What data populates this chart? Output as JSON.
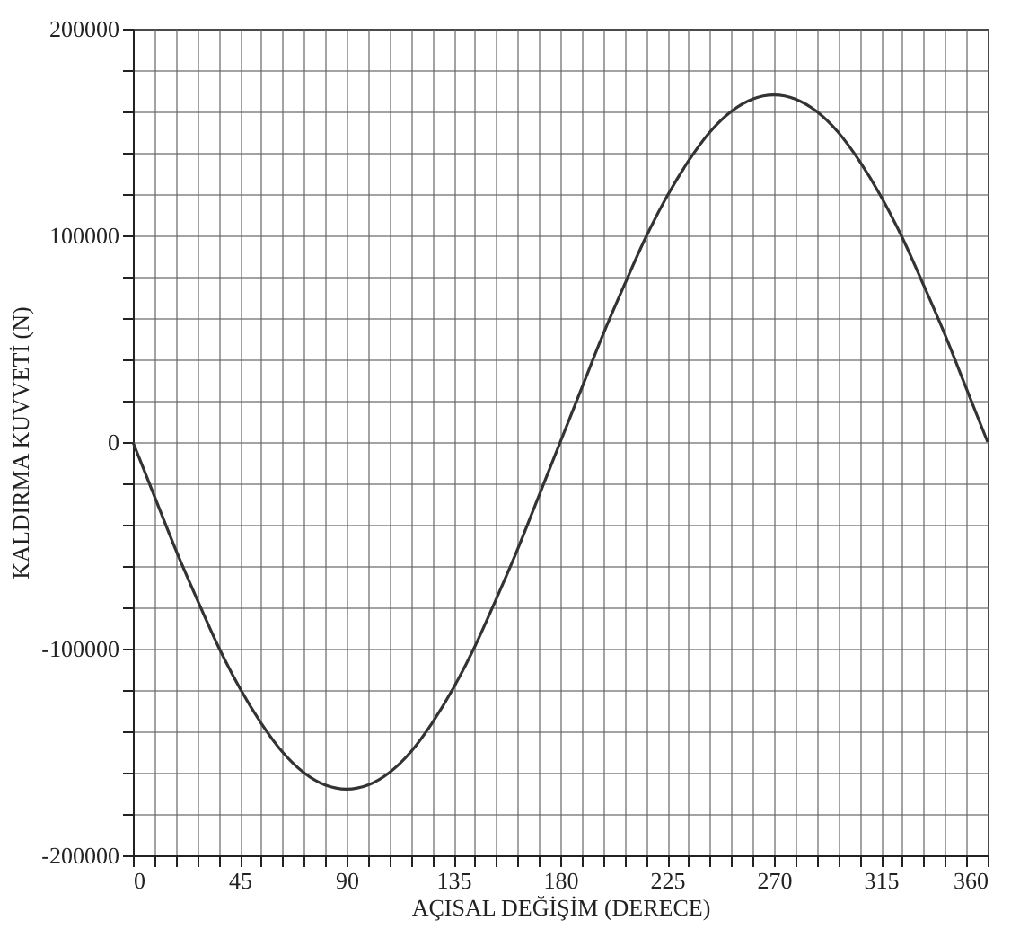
{
  "chart_data": {
    "type": "line",
    "xlabel": "AÇISAL DEĞİŞİM (DERECE)",
    "ylabel": "KALDIRMA KUVVETİ (N)",
    "x": [
      0,
      9,
      18,
      27,
      36,
      45,
      54,
      63,
      72,
      81,
      90,
      99,
      108,
      117,
      126,
      135,
      144,
      153,
      162,
      171,
      180,
      189,
      198,
      207,
      216,
      225,
      234,
      243,
      252,
      261,
      270,
      279,
      288,
      297,
      306,
      315,
      324,
      333,
      342,
      351,
      360
    ],
    "series": [
      {
        "color": "#333333",
        "values": [
          0,
          -26000,
          -52000,
          -76000,
          -99000,
          -119000,
          -136000,
          -150000,
          -160000,
          -166000,
          -168000,
          -166000,
          -160000,
          -150000,
          -136000,
          -119000,
          -99000,
          -76000,
          -52000,
          -26000,
          0,
          26000,
          52000,
          76000,
          99000,
          119000,
          136000,
          150000,
          160000,
          166000,
          168000,
          166000,
          160000,
          150000,
          136000,
          119000,
          99000,
          76000,
          52000,
          26000,
          0
        ]
      }
    ],
    "xlim": [
      0,
      360
    ],
    "xticks": [
      0,
      {
        "value": 9,
        "label": null
      },
      {
        "value": 18,
        "label": null
      },
      {
        "value": 27,
        "label": null
      },
      {
        "value": 36,
        "label": null
      },
      45,
      {
        "value": 54,
        "label": null
      },
      {
        "value": 63,
        "label": null
      },
      {
        "value": 72,
        "label": null
      },
      {
        "value": 81,
        "label": null
      },
      90,
      {
        "value": 99,
        "label": null
      },
      {
        "value": 108,
        "label": null
      },
      {
        "value": 117,
        "label": null
      },
      {
        "value": 126,
        "label": null
      },
      135,
      {
        "value": 144,
        "label": null
      },
      {
        "value": 153,
        "label": null
      },
      {
        "value": 162,
        "label": null
      },
      {
        "value": 171,
        "label": null
      },
      180,
      {
        "value": 189,
        "label": null
      },
      {
        "value": 198,
        "label": null
      },
      {
        "value": 207,
        "label": null
      },
      {
        "value": 216,
        "label": null
      },
      225,
      {
        "value": 234,
        "label": null
      },
      {
        "value": 243,
        "label": null
      },
      {
        "value": 252,
        "label": null
      },
      {
        "value": 261,
        "label": null
      },
      270,
      {
        "value": 279,
        "label": null
      },
      {
        "value": 288,
        "label": null
      },
      {
        "value": 297,
        "label": null
      },
      {
        "value": 306,
        "label": null
      },
      315,
      {
        "value": 324,
        "label": null
      },
      {
        "value": 333,
        "label": null
      },
      {
        "value": 342,
        "label": null
      },
      {
        "value": 351,
        "label": null
      },
      360
    ],
    "ylim": [
      -200000,
      200000
    ],
    "yticks": [
      -200000,
      {
        "value": -180000,
        "label": null
      },
      {
        "value": -160000,
        "label": null
      },
      {
        "value": -140000,
        "label": null
      },
      {
        "value": -120000,
        "label": null
      },
      -100000,
      {
        "value": -80000,
        "label": null
      },
      {
        "value": -60000,
        "label": null
      },
      {
        "value": -40000,
        "label": null
      },
      {
        "value": -20000,
        "label": null
      },
      0,
      {
        "value": 20000,
        "label": null
      },
      {
        "value": 40000,
        "label": null
      },
      {
        "value": 60000,
        "label": null
      },
      {
        "value": 80000,
        "label": null
      },
      100000,
      {
        "value": 120000,
        "label": null
      },
      {
        "value": 140000,
        "label": null
      },
      {
        "value": 160000,
        "label": null
      },
      {
        "value": 180000,
        "label": null
      },
      200000
    ],
    "grid": true,
    "marker": "none",
    "line_style": "solid"
  }
}
